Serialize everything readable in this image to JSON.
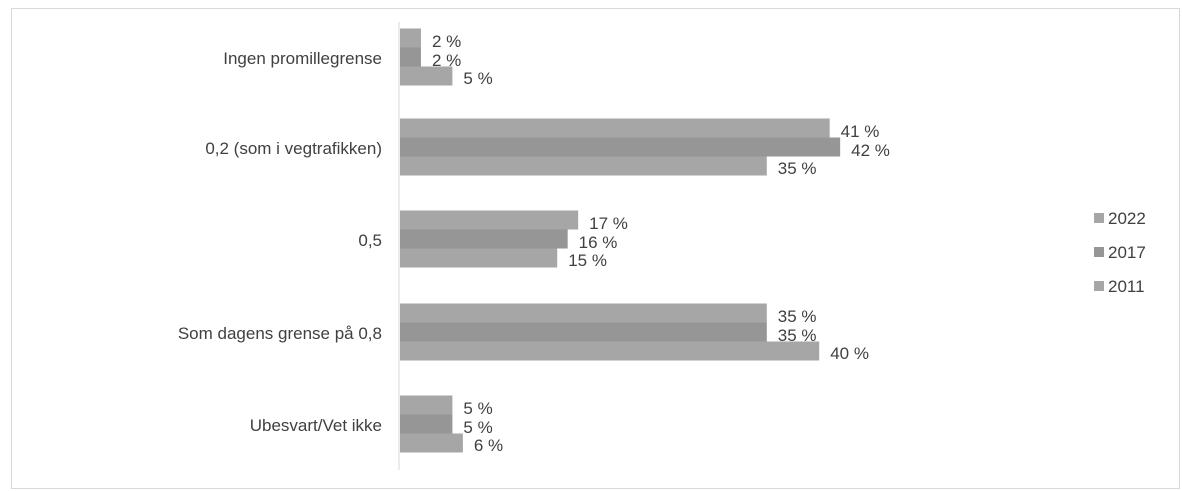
{
  "chart_data": {
    "type": "bar",
    "orientation": "horizontal",
    "categories": [
      "Ingen promillegrense",
      "0,2 (som i vegtrafikken)",
      "0,5",
      "Som dagens grense på 0,8",
      "Ubesvart/Vet ikke"
    ],
    "series": [
      {
        "name": "2022",
        "values": [
          2,
          41,
          17,
          35,
          5
        ],
        "labels": [
          "2 %",
          "41 %",
          "17 %",
          "35 %",
          "5 %"
        ],
        "color": "#a6a6a6"
      },
      {
        "name": "2017",
        "values": [
          2,
          42,
          16,
          35,
          5
        ],
        "labels": [
          "2 %",
          "42 %",
          "16 %",
          "35 %",
          "5 %"
        ],
        "color": "#969696"
      },
      {
        "name": "2011",
        "values": [
          5,
          35,
          15,
          40,
          6
        ],
        "labels": [
          "5 %",
          "35 %",
          "15 %",
          "40 %",
          "6 %"
        ],
        "color": "#a6a6a6"
      }
    ],
    "legend": {
      "position": "right"
    },
    "grid": false,
    "title": "",
    "xlabel": "",
    "ylabel": ""
  }
}
